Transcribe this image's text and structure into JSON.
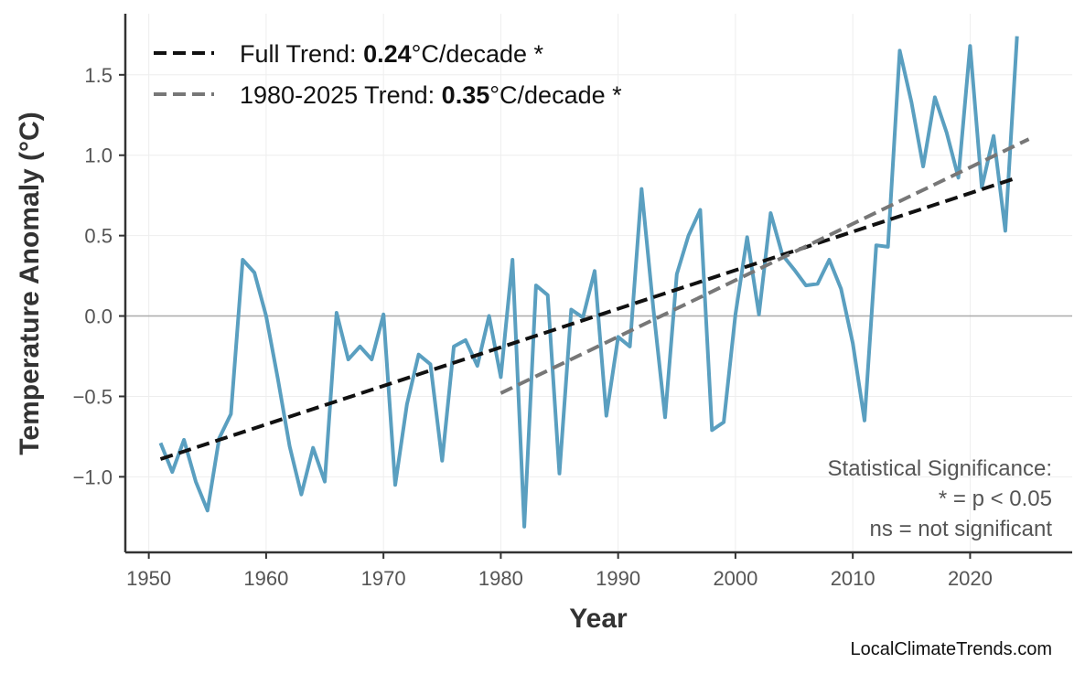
{
  "chart_data": {
    "type": "line",
    "title": "",
    "xlabel": "Year",
    "ylabel": "Temperature Anomaly (°C)",
    "xlim": [
      1948,
      2028.7
    ],
    "ylim": [
      -1.47,
      1.88
    ],
    "grid": true,
    "x_ticks": [
      1950,
      1960,
      1970,
      1980,
      1990,
      2000,
      2010,
      2020
    ],
    "y_ticks": [
      -1.0,
      -0.5,
      0.0,
      0.5,
      1.0,
      1.5
    ],
    "y_tick_labels": [
      "−1.0",
      "−0.5",
      "0.0",
      "0.5",
      "1.0",
      "1.5"
    ],
    "legend_placement": "top-left",
    "series": [
      {
        "color": "#5a9fc0",
        "x": [
          1951,
          1952,
          1953,
          1954,
          1955,
          1956,
          1957,
          1958,
          1959,
          1960,
          1961,
          1962,
          1963,
          1964,
          1965,
          1966,
          1967,
          1968,
          1969,
          1970,
          1971,
          1972,
          1973,
          1974,
          1975,
          1976,
          1977,
          1978,
          1979,
          1980,
          1981,
          1982,
          1983,
          1984,
          1985,
          1986,
          1987,
          1988,
          1989,
          1990,
          1991,
          1992,
          1993,
          1994,
          1995,
          1996,
          1997,
          1998,
          1999,
          2000,
          2001,
          2002,
          2003,
          2004,
          2005,
          2006,
          2007,
          2008,
          2009,
          2010,
          2011,
          2012,
          2013,
          2014,
          2015,
          2016,
          2017,
          2018,
          2019,
          2020,
          2021,
          2022,
          2023,
          2024
        ],
        "y": [
          -0.79,
          -0.97,
          -0.77,
          -1.03,
          -1.21,
          -0.76,
          -0.61,
          0.35,
          0.27,
          0.0,
          -0.39,
          -0.81,
          -1.11,
          -0.82,
          -1.03,
          0.02,
          -0.27,
          -0.19,
          -0.27,
          0.01,
          -1.05,
          -0.55,
          -0.24,
          -0.3,
          -0.9,
          -0.19,
          -0.15,
          -0.31,
          0.0,
          -0.38,
          0.35,
          -1.31,
          0.19,
          0.13,
          -0.98,
          0.04,
          -0.01,
          0.28,
          -0.62,
          -0.13,
          -0.19,
          0.79,
          0.05,
          -0.63,
          0.26,
          0.5,
          0.66,
          -0.71,
          -0.66,
          0.01,
          0.49,
          0.01,
          0.64,
          0.38,
          0.29,
          0.19,
          0.2,
          0.35,
          0.17,
          -0.17,
          -0.65,
          0.44,
          0.43,
          1.65,
          1.33,
          0.93,
          1.36,
          1.14,
          0.86,
          1.68,
          0.8,
          1.12,
          0.53,
          1.74
        ]
      }
    ],
    "trends": [
      {
        "label_prefix": "Full Trend: ",
        "value": "0.24",
        "label_suffix": "°C/decade *",
        "x": [
          1951,
          2024
        ],
        "y": [
          -0.89,
          0.86
        ],
        "color": "#111111"
      },
      {
        "label_prefix": "1980-2025 Trend: ",
        "value": "0.35",
        "label_suffix": "°C/decade *",
        "x": [
          1980,
          2025
        ],
        "y": [
          -0.48,
          1.1
        ],
        "color": "#777777"
      }
    ],
    "annotation": [
      "Statistical Significance:",
      "* = p < 0.05",
      "ns = not significant"
    ],
    "credit": "LocalClimateTrends.com"
  }
}
